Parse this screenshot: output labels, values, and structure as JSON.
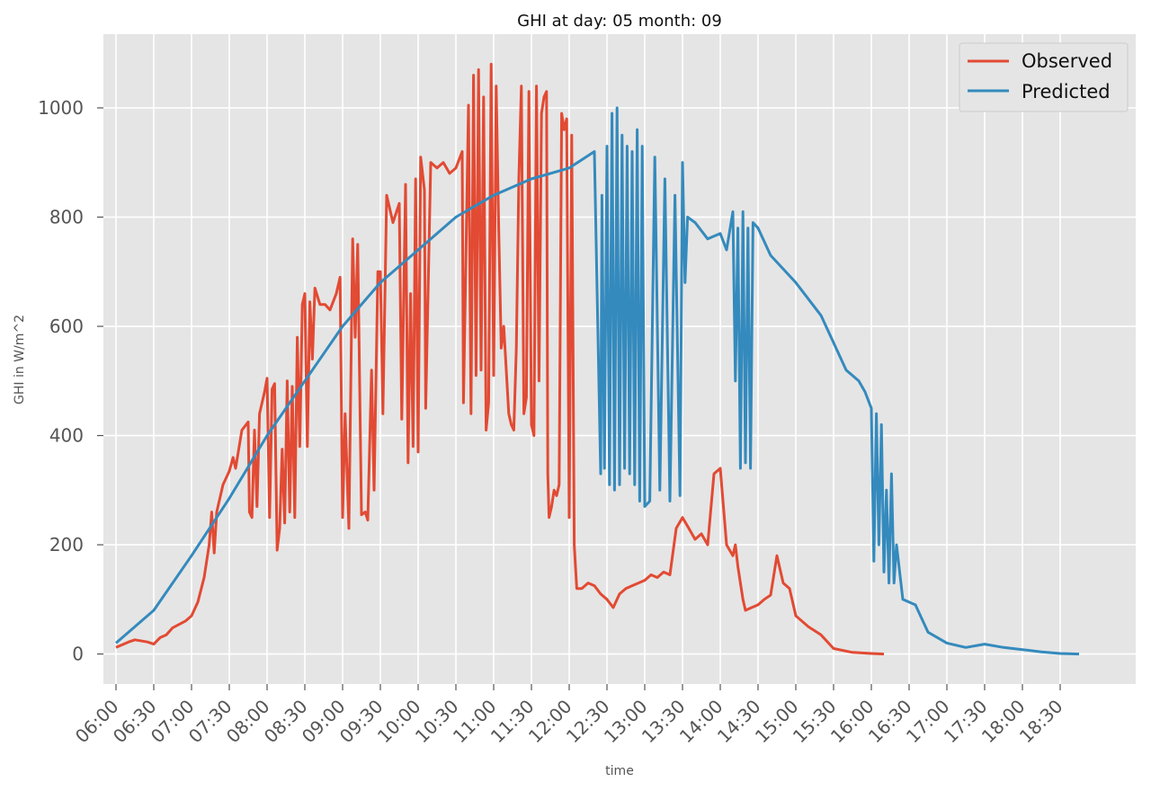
{
  "chart_data": {
    "type": "line",
    "title": "GHI at day: 05 month: 09",
    "xlabel": "time",
    "ylabel": "GHI in W/m^2",
    "xlim": [
      "05:50",
      "19:30"
    ],
    "ylim": [
      -55,
      1135
    ],
    "grid": true,
    "legend": "top-right",
    "x_ticks": [
      "06:00",
      "06:30",
      "07:00",
      "07:30",
      "08:00",
      "08:30",
      "09:00",
      "09:30",
      "10:00",
      "10:30",
      "11:00",
      "11:30",
      "12:00",
      "12:30",
      "13:00",
      "13:30",
      "14:00",
      "14:30",
      "15:00",
      "15:30",
      "16:00",
      "16:30",
      "17:00",
      "17:30",
      "18:00",
      "18:30"
    ],
    "y_ticks": [
      0,
      200,
      400,
      600,
      800,
      1000
    ],
    "series": [
      {
        "name": "Observed",
        "color": "#E24A33",
        "points": [
          [
            "06:00",
            12
          ],
          [
            "06:10",
            22
          ],
          [
            "06:15",
            26
          ],
          [
            "06:25",
            22
          ],
          [
            "06:30",
            18
          ],
          [
            "06:35",
            30
          ],
          [
            "06:40",
            35
          ],
          [
            "06:45",
            48
          ],
          [
            "06:55",
            60
          ],
          [
            "07:00",
            70
          ],
          [
            "07:05",
            95
          ],
          [
            "07:10",
            140
          ],
          [
            "07:14",
            200
          ],
          [
            "07:16",
            260
          ],
          [
            "07:18",
            185
          ],
          [
            "07:20",
            260
          ],
          [
            "07:25",
            310
          ],
          [
            "07:30",
            335
          ],
          [
            "07:33",
            360
          ],
          [
            "07:35",
            340
          ],
          [
            "07:40",
            410
          ],
          [
            "07:45",
            425
          ],
          [
            "07:46",
            260
          ],
          [
            "07:48",
            250
          ],
          [
            "07:50",
            410
          ],
          [
            "07:52",
            270
          ],
          [
            "07:54",
            440
          ],
          [
            "07:58",
            480
          ],
          [
            "08:00",
            505
          ],
          [
            "08:02",
            250
          ],
          [
            "08:04",
            485
          ],
          [
            "08:06",
            495
          ],
          [
            "08:08",
            190
          ],
          [
            "08:10",
            230
          ],
          [
            "08:12",
            375
          ],
          [
            "08:14",
            240
          ],
          [
            "08:16",
            500
          ],
          [
            "08:18",
            260
          ],
          [
            "08:20",
            490
          ],
          [
            "08:22",
            250
          ],
          [
            "08:24",
            580
          ],
          [
            "08:26",
            380
          ],
          [
            "08:28",
            640
          ],
          [
            "08:30",
            660
          ],
          [
            "08:32",
            380
          ],
          [
            "08:34",
            645
          ],
          [
            "08:36",
            540
          ],
          [
            "08:38",
            670
          ],
          [
            "08:42",
            640
          ],
          [
            "08:46",
            640
          ],
          [
            "08:50",
            630
          ],
          [
            "08:55",
            660
          ],
          [
            "08:58",
            690
          ],
          [
            "09:00",
            250
          ],
          [
            "09:02",
            440
          ],
          [
            "09:05",
            230
          ],
          [
            "09:08",
            760
          ],
          [
            "09:10",
            580
          ],
          [
            "09:12",
            750
          ],
          [
            "09:15",
            255
          ],
          [
            "09:18",
            260
          ],
          [
            "09:20",
            245
          ],
          [
            "09:23",
            520
          ],
          [
            "09:25",
            300
          ],
          [
            "09:28",
            700
          ],
          [
            "09:30",
            700
          ],
          [
            "09:32",
            440
          ],
          [
            "09:35",
            840
          ],
          [
            "09:38",
            810
          ],
          [
            "09:40",
            790
          ],
          [
            "09:45",
            825
          ],
          [
            "09:47",
            430
          ],
          [
            "09:50",
            860
          ],
          [
            "09:52",
            350
          ],
          [
            "09:54",
            660
          ],
          [
            "09:56",
            380
          ],
          [
            "09:58",
            870
          ],
          [
            "10:00",
            370
          ],
          [
            "10:02",
            910
          ],
          [
            "10:05",
            850
          ],
          [
            "10:06",
            450
          ],
          [
            "10:10",
            900
          ],
          [
            "10:15",
            890
          ],
          [
            "10:20",
            900
          ],
          [
            "10:25",
            880
          ],
          [
            "10:30",
            890
          ],
          [
            "10:35",
            920
          ],
          [
            "10:36",
            460
          ],
          [
            "10:40",
            1005
          ],
          [
            "10:42",
            440
          ],
          [
            "10:44",
            1060
          ],
          [
            "10:46",
            510
          ],
          [
            "10:48",
            1070
          ],
          [
            "10:50",
            520
          ],
          [
            "10:52",
            1020
          ],
          [
            "10:54",
            410
          ],
          [
            "10:56",
            460
          ],
          [
            "10:58",
            1080
          ],
          [
            "11:00",
            510
          ],
          [
            "11:02",
            1040
          ],
          [
            "11:04",
            780
          ],
          [
            "11:06",
            560
          ],
          [
            "11:08",
            600
          ],
          [
            "11:12",
            440
          ],
          [
            "11:14",
            420
          ],
          [
            "11:16",
            410
          ],
          [
            "11:18",
            560
          ],
          [
            "11:20",
            870
          ],
          [
            "11:22",
            1040
          ],
          [
            "11:24",
            440
          ],
          [
            "11:26",
            470
          ],
          [
            "11:28",
            1030
          ],
          [
            "11:30",
            420
          ],
          [
            "11:32",
            400
          ],
          [
            "11:34",
            1040
          ],
          [
            "11:36",
            500
          ],
          [
            "11:38",
            990
          ],
          [
            "11:40",
            1020
          ],
          [
            "11:42",
            1030
          ],
          [
            "11:43",
            330
          ],
          [
            "11:44",
            250
          ],
          [
            "11:46",
            270
          ],
          [
            "11:48",
            300
          ],
          [
            "11:50",
            290
          ],
          [
            "11:52",
            310
          ],
          [
            "11:54",
            990
          ],
          [
            "11:56",
            960
          ],
          [
            "11:58",
            980
          ],
          [
            "12:00",
            250
          ],
          [
            "12:02",
            950
          ],
          [
            "12:04",
            200
          ],
          [
            "12:06",
            120
          ],
          [
            "12:10",
            120
          ],
          [
            "12:15",
            130
          ],
          [
            "12:20",
            125
          ],
          [
            "12:25",
            110
          ],
          [
            "12:30",
            100
          ],
          [
            "12:35",
            85
          ],
          [
            "12:40",
            110
          ],
          [
            "12:45",
            120
          ],
          [
            "12:50",
            125
          ],
          [
            "12:55",
            130
          ],
          [
            "13:00",
            135
          ],
          [
            "13:05",
            145
          ],
          [
            "13:10",
            140
          ],
          [
            "13:15",
            150
          ],
          [
            "13:20",
            145
          ],
          [
            "13:25",
            230
          ],
          [
            "13:30",
            250
          ],
          [
            "13:35",
            230
          ],
          [
            "13:40",
            210
          ],
          [
            "13:45",
            220
          ],
          [
            "13:50",
            200
          ],
          [
            "13:55",
            330
          ],
          [
            "14:00",
            340
          ],
          [
            "14:05",
            200
          ],
          [
            "14:10",
            180
          ],
          [
            "14:12",
            200
          ],
          [
            "14:14",
            160
          ],
          [
            "14:16",
            130
          ],
          [
            "14:18",
            100
          ],
          [
            "14:20",
            80
          ],
          [
            "14:25",
            85
          ],
          [
            "14:30",
            90
          ],
          [
            "14:35",
            100
          ],
          [
            "14:40",
            108
          ],
          [
            "14:45",
            180
          ],
          [
            "14:50",
            130
          ],
          [
            "14:55",
            120
          ],
          [
            "15:00",
            70
          ],
          [
            "15:10",
            50
          ],
          [
            "15:20",
            35
          ],
          [
            "15:30",
            10
          ],
          [
            "15:45",
            3
          ],
          [
            "16:00",
            1
          ],
          [
            "16:10",
            0
          ]
        ]
      },
      {
        "name": "Predicted",
        "color": "#348ABD",
        "points": [
          [
            "06:00",
            20
          ],
          [
            "06:30",
            80
          ],
          [
            "07:00",
            180
          ],
          [
            "07:30",
            285
          ],
          [
            "08:00",
            400
          ],
          [
            "08:30",
            500
          ],
          [
            "09:00",
            600
          ],
          [
            "09:30",
            680
          ],
          [
            "10:00",
            740
          ],
          [
            "10:30",
            800
          ],
          [
            "11:00",
            840
          ],
          [
            "11:30",
            870
          ],
          [
            "12:00",
            890
          ],
          [
            "12:20",
            920
          ],
          [
            "12:25",
            330
          ],
          [
            "12:26",
            840
          ],
          [
            "12:28",
            340
          ],
          [
            "12:30",
            930
          ],
          [
            "12:32",
            310
          ],
          [
            "12:34",
            990
          ],
          [
            "12:36",
            300
          ],
          [
            "12:38",
            1000
          ],
          [
            "12:40",
            310
          ],
          [
            "12:42",
            950
          ],
          [
            "12:44",
            340
          ],
          [
            "12:46",
            930
          ],
          [
            "12:48",
            330
          ],
          [
            "12:50",
            920
          ],
          [
            "12:52",
            310
          ],
          [
            "12:54",
            960
          ],
          [
            "12:56",
            280
          ],
          [
            "12:58",
            930
          ],
          [
            "13:00",
            270
          ],
          [
            "13:04",
            280
          ],
          [
            "13:08",
            910
          ],
          [
            "13:12",
            300
          ],
          [
            "13:16",
            870
          ],
          [
            "13:20",
            280
          ],
          [
            "13:24",
            840
          ],
          [
            "13:28",
            290
          ],
          [
            "13:30",
            900
          ],
          [
            "13:32",
            680
          ],
          [
            "13:34",
            800
          ],
          [
            "13:40",
            790
          ],
          [
            "13:50",
            760
          ],
          [
            "14:00",
            770
          ],
          [
            "14:05",
            740
          ],
          [
            "14:10",
            810
          ],
          [
            "14:12",
            500
          ],
          [
            "14:14",
            780
          ],
          [
            "14:16",
            340
          ],
          [
            "14:18",
            810
          ],
          [
            "14:20",
            350
          ],
          [
            "14:22",
            780
          ],
          [
            "14:24",
            340
          ],
          [
            "14:26",
            790
          ],
          [
            "14:30",
            780
          ],
          [
            "14:40",
            730
          ],
          [
            "15:00",
            680
          ],
          [
            "15:20",
            620
          ],
          [
            "15:30",
            570
          ],
          [
            "15:40",
            520
          ],
          [
            "15:50",
            500
          ],
          [
            "15:55",
            480
          ],
          [
            "16:00",
            450
          ],
          [
            "16:02",
            170
          ],
          [
            "16:04",
            440
          ],
          [
            "16:06",
            200
          ],
          [
            "16:08",
            420
          ],
          [
            "16:10",
            150
          ],
          [
            "16:12",
            300
          ],
          [
            "16:14",
            130
          ],
          [
            "16:16",
            330
          ],
          [
            "16:18",
            130
          ],
          [
            "16:20",
            200
          ],
          [
            "16:25",
            100
          ],
          [
            "16:35",
            90
          ],
          [
            "16:45",
            40
          ],
          [
            "17:00",
            20
          ],
          [
            "17:15",
            12
          ],
          [
            "17:30",
            18
          ],
          [
            "17:45",
            12
          ],
          [
            "18:00",
            8
          ],
          [
            "18:15",
            4
          ],
          [
            "18:30",
            1
          ],
          [
            "18:45",
            0
          ]
        ]
      }
    ]
  }
}
